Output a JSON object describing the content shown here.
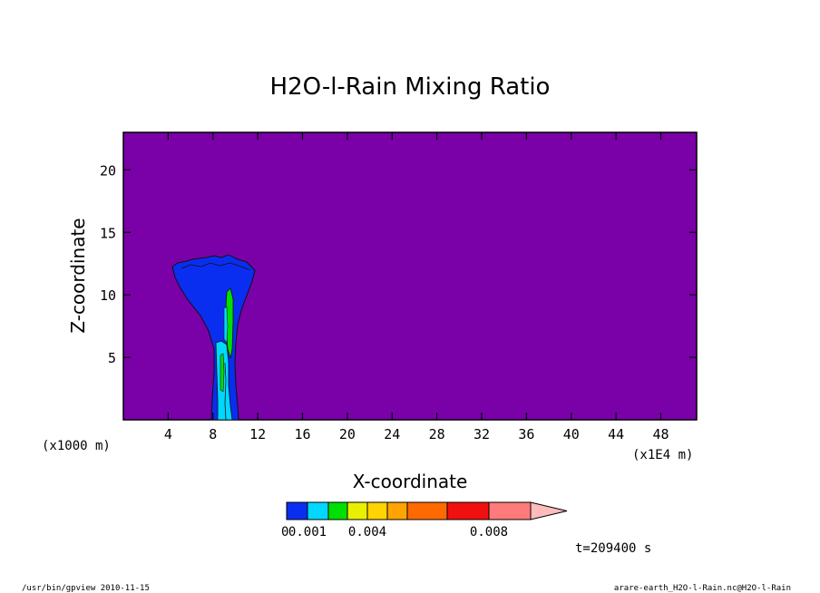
{
  "chart_data": {
    "type": "heatmap",
    "title": "H2O-l-Rain Mixing Ratio",
    "xlabel": "X-coordinate",
    "ylabel": "Z-coordinate",
    "x_unit_left": "(x1000 m)",
    "x_unit_right": "(x1E4 m)",
    "x_ticks": [
      "4",
      "8",
      "12",
      "16",
      "20",
      "24",
      "28",
      "32",
      "36",
      "40",
      "44",
      "48"
    ],
    "x_tick_values": [
      4,
      8,
      12,
      16,
      20,
      24,
      28,
      32,
      36,
      40,
      44,
      48
    ],
    "y_ticks": [
      "5",
      "10",
      "15",
      "20"
    ],
    "y_tick_values": [
      5,
      10,
      15,
      20
    ],
    "xlim": [
      0,
      51.2
    ],
    "ylim": [
      0,
      23
    ],
    "background_color": "#7a00a8",
    "colorbar": {
      "colors": [
        "#0a2ef0",
        "#00d8ff",
        "#00e000",
        "#e8f000",
        "#ffd400",
        "#ffa400",
        "#ff6a00",
        "#f01010",
        "#ff7a7a",
        "#ffbcbc"
      ],
      "levels": [
        0.001,
        0.002,
        0.003,
        0.004,
        0.005,
        0.006,
        0.007,
        0.008,
        0.009
      ],
      "labels": [
        "0.001",
        "0.004",
        "0.008"
      ],
      "label_prefix": "0"
    },
    "time_label": "t=209400 s"
  },
  "footer": {
    "left": "/usr/bin/gpview  2010-11-15",
    "right": "arare-earth_H2O-l-Rain.nc@H2O-l-Rain"
  }
}
